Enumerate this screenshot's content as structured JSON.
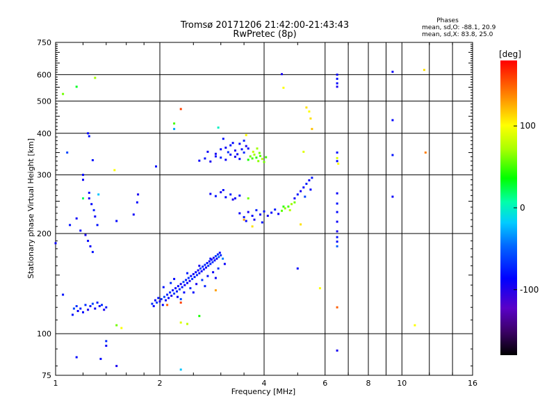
{
  "chart_data": {
    "type": "scatter",
    "title": "Tromsø 20171206 21:42:00-21:43:43",
    "subtitle": "RwPretec (8p)",
    "xlabel": "Frequency [MHz]",
    "ylabel": "Stationary phase Virtual Height [km]",
    "x_scale": "log",
    "y_scale": "log",
    "xlim": [
      1,
      16
    ],
    "ylim": [
      75,
      750
    ],
    "x_ticks": [
      1,
      2,
      4,
      6,
      8,
      10,
      16
    ],
    "x_tick_labels": [
      "1",
      "2",
      "4",
      "6",
      "8",
      "10",
      "16"
    ],
    "x_grid": [
      2,
      4,
      6,
      8
    ],
    "x_minor": [
      7,
      9,
      10,
      12,
      14
    ],
    "y_ticks": [
      75,
      100,
      200,
      300,
      400,
      500,
      600,
      750
    ],
    "y_tick_labels": [
      "75",
      "100",
      "200",
      "300",
      "400",
      "500",
      "600",
      "750"
    ],
    "y_grid": [
      100,
      200,
      300,
      400,
      500,
      600
    ],
    "grid": true,
    "stats": {
      "heading": "Phases",
      "line1": "mean, sd,O: -88.1, 20.9",
      "line2": "mean, sd,X:  83.8, 25.0"
    },
    "colorbar": {
      "label": "[deg]",
      "vmin": -180,
      "vmax": 180,
      "ticks": [
        100,
        0,
        -100
      ],
      "tick_labels": [
        "100",
        "0",
        "-100"
      ],
      "colormap": "rainbow-black-to-red"
    },
    "points": [
      [
        1.13,
        119,
        -60
      ],
      [
        1.12,
        114,
        -80
      ],
      [
        1.15,
        121,
        -70
      ],
      [
        1.16,
        117,
        -90
      ],
      [
        1.18,
        119,
        -75
      ],
      [
        1.2,
        116,
        -85
      ],
      [
        1.22,
        122,
        -70
      ],
      [
        1.24,
        118,
        -95
      ],
      [
        1.26,
        121,
        -80
      ],
      [
        1.28,
        123,
        -60
      ],
      [
        1.3,
        119,
        -90
      ],
      [
        1.32,
        124,
        -75
      ],
      [
        1.34,
        121,
        -85
      ],
      [
        1.36,
        122,
        -70
      ],
      [
        1.38,
        118,
        -95
      ],
      [
        1.4,
        120,
        -80
      ],
      [
        1.9,
        123,
        -70
      ],
      [
        1.92,
        121,
        -85
      ],
      [
        1.94,
        126,
        -90
      ],
      [
        1.96,
        124,
        -65
      ],
      [
        1.98,
        128,
        -80
      ],
      [
        2.0,
        125,
        -95
      ],
      [
        2.02,
        127,
        -70
      ],
      [
        2.04,
        122,
        -85
      ],
      [
        2.06,
        129,
        -60
      ],
      [
        2.08,
        126,
        -90
      ],
      [
        2.1,
        131,
        -75
      ],
      [
        2.12,
        128,
        -85
      ],
      [
        2.14,
        133,
        -70
      ],
      [
        2.16,
        130,
        -95
      ],
      [
        2.18,
        135,
        -80
      ],
      [
        2.2,
        132,
        -65
      ],
      [
        2.22,
        137,
        -90
      ],
      [
        2.24,
        134,
        -75
      ],
      [
        2.26,
        139,
        -85
      ],
      [
        2.28,
        136,
        -70
      ],
      [
        2.3,
        141,
        -95
      ],
      [
        2.32,
        138,
        -80
      ],
      [
        2.34,
        143,
        -60
      ],
      [
        2.36,
        140,
        -90
      ],
      [
        2.38,
        145,
        -75
      ],
      [
        2.4,
        142,
        -85
      ],
      [
        2.42,
        147,
        -70
      ],
      [
        2.44,
        144,
        -95
      ],
      [
        2.46,
        149,
        -80
      ],
      [
        2.48,
        146,
        -65
      ],
      [
        2.5,
        151,
        -90
      ],
      [
        2.52,
        148,
        -75
      ],
      [
        2.54,
        153,
        -85
      ],
      [
        2.56,
        150,
        -70
      ],
      [
        2.58,
        155,
        -95
      ],
      [
        2.6,
        152,
        -80
      ],
      [
        2.62,
        157,
        -60
      ],
      [
        2.64,
        154,
        -90
      ],
      [
        2.66,
        159,
        -75
      ],
      [
        2.68,
        156,
        -85
      ],
      [
        2.7,
        161,
        -70
      ],
      [
        2.72,
        158,
        -95
      ],
      [
        2.74,
        163,
        -80
      ],
      [
        2.76,
        160,
        -65
      ],
      [
        2.78,
        165,
        -90
      ],
      [
        2.8,
        162,
        -75
      ],
      [
        2.82,
        167,
        -85
      ],
      [
        2.84,
        164,
        -70
      ],
      [
        2.86,
        169,
        -95
      ],
      [
        2.88,
        166,
        -80
      ],
      [
        2.9,
        171,
        -60
      ],
      [
        2.92,
        168,
        -90
      ],
      [
        2.94,
        173,
        -75
      ],
      [
        2.96,
        170,
        -50
      ],
      [
        2.98,
        175,
        -85
      ],
      [
        3.0,
        172,
        -70
      ],
      [
        3.04,
        168,
        -40
      ],
      [
        3.08,
        162,
        -90
      ],
      [
        2.05,
        138,
        -80
      ],
      [
        2.15,
        142,
        -70
      ],
      [
        2.25,
        129,
        -90
      ],
      [
        2.35,
        133,
        -85
      ],
      [
        2.45,
        137,
        -75
      ],
      [
        2.55,
        141,
        -95
      ],
      [
        2.65,
        145,
        -65
      ],
      [
        2.75,
        149,
        -80
      ],
      [
        2.85,
        153,
        -90
      ],
      [
        2.95,
        157,
        -70
      ],
      [
        2.2,
        146,
        -85
      ],
      [
        2.4,
        152,
        -75
      ],
      [
        2.6,
        160,
        -95
      ],
      [
        2.8,
        168,
        -80
      ],
      [
        2.3,
        127,
        -60
      ],
      [
        2.5,
        133,
        -85
      ],
      [
        2.7,
        139,
        -75
      ],
      [
        2.9,
        147,
        -90
      ],
      [
        2.6,
        331,
        -90
      ],
      [
        2.7,
        336,
        -80
      ],
      [
        2.8,
        329,
        -95
      ],
      [
        2.9,
        341,
        -85
      ],
      [
        3.0,
        338,
        -75
      ],
      [
        3.1,
        333,
        -90
      ],
      [
        3.2,
        345,
        -80
      ],
      [
        3.3,
        340,
        -95
      ],
      [
        3.4,
        335,
        -85
      ],
      [
        3.5,
        350,
        -70
      ],
      [
        3.1,
        362,
        -90
      ],
      [
        3.2,
        368,
        -80
      ],
      [
        3.3,
        355,
        -95
      ],
      [
        3.4,
        372,
        -85
      ],
      [
        3.5,
        380,
        -75
      ],
      [
        3.6,
        360,
        -90
      ],
      [
        3.0,
        358,
        -85
      ],
      [
        2.9,
        347,
        -95
      ],
      [
        3.15,
        351,
        -70
      ],
      [
        3.35,
        346,
        -90
      ],
      [
        3.45,
        358,
        -80
      ],
      [
        3.55,
        366,
        -95
      ],
      [
        3.25,
        374,
        -85
      ],
      [
        2.75,
        352,
        -90
      ],
      [
        3.05,
        385,
        -80
      ],
      [
        3.6,
        333,
        40
      ],
      [
        3.65,
        341,
        60
      ],
      [
        3.7,
        336,
        50
      ],
      [
        3.75,
        345,
        70
      ],
      [
        3.8,
        338,
        45
      ],
      [
        3.85,
        330,
        65
      ],
      [
        3.9,
        342,
        55
      ],
      [
        3.95,
        335,
        75
      ],
      [
        4.0,
        328,
        60
      ],
      [
        4.05,
        339,
        50
      ],
      [
        3.72,
        352,
        80
      ],
      [
        3.88,
        349,
        60
      ],
      [
        3.82,
        360,
        70
      ],
      [
        2.8,
        263,
        -90
      ],
      [
        2.9,
        259,
        -80
      ],
      [
        3.0,
        266,
        -95
      ],
      [
        3.1,
        257,
        -85
      ],
      [
        3.2,
        262,
        -75
      ],
      [
        3.3,
        255,
        -90
      ],
      [
        3.4,
        260,
        -80
      ],
      [
        3.05,
        270,
        -85
      ],
      [
        3.25,
        253,
        -95
      ],
      [
        3.4,
        230,
        -90
      ],
      [
        3.5,
        224,
        -80
      ],
      [
        3.6,
        232,
        -95
      ],
      [
        3.7,
        226,
        -85
      ],
      [
        3.8,
        235,
        -75
      ],
      [
        3.9,
        228,
        -90
      ],
      [
        4.0,
        233,
        -80
      ],
      [
        4.1,
        226,
        -95
      ],
      [
        4.2,
        231,
        -85
      ],
      [
        4.3,
        236,
        -75
      ],
      [
        4.4,
        229,
        -90
      ],
      [
        3.55,
        218,
        -85
      ],
      [
        3.75,
        220,
        -95
      ],
      [
        3.95,
        216,
        -80
      ],
      [
        4.5,
        234,
        55
      ],
      [
        4.6,
        238,
        65
      ],
      [
        4.7,
        241,
        50
      ],
      [
        4.8,
        245,
        70
      ],
      [
        4.9,
        248,
        60
      ],
      [
        4.55,
        241,
        45
      ],
      [
        4.75,
        235,
        75
      ],
      [
        4.9,
        255,
        -90
      ],
      [
        5.0,
        262,
        -80
      ],
      [
        5.1,
        268,
        -95
      ],
      [
        5.2,
        275,
        -85
      ],
      [
        5.3,
        282,
        -75
      ],
      [
        5.4,
        289,
        -90
      ],
      [
        5.5,
        294,
        -80
      ],
      [
        5.25,
        258,
        -60
      ],
      [
        5.45,
        271,
        -85
      ],
      [
        1.2,
        300,
        -85
      ],
      [
        1.2,
        290,
        -90
      ],
      [
        1.25,
        265,
        -80
      ],
      [
        1.25,
        255,
        -95
      ],
      [
        1.27,
        245,
        -85
      ],
      [
        1.29,
        235,
        -75
      ],
      [
        1.3,
        225,
        -90
      ],
      [
        1.32,
        212,
        -80
      ],
      [
        1.22,
        198,
        -95
      ],
      [
        1.24,
        190,
        -85
      ],
      [
        1.26,
        183,
        -90
      ],
      [
        1.28,
        176,
        -80
      ],
      [
        1.18,
        204,
        -85
      ],
      [
        1.0,
        187,
        -90
      ],
      [
        1.05,
        131,
        -80
      ],
      [
        1.35,
        84,
        -85
      ],
      [
        1.4,
        92,
        -90
      ],
      [
        1.5,
        80,
        -95
      ],
      [
        1.4,
        95,
        -70
      ],
      [
        1.15,
        85,
        -85
      ],
      [
        1.1,
        212,
        -80
      ],
      [
        1.15,
        222,
        -90
      ],
      [
        1.28,
        332,
        -80
      ],
      [
        1.5,
        218,
        -85
      ],
      [
        1.68,
        228,
        -90
      ],
      [
        1.72,
        248,
        -85
      ],
      [
        1.73,
        262,
        -95
      ],
      [
        1.95,
        318,
        -80
      ],
      [
        6.5,
        600,
        -90
      ],
      [
        6.5,
        583,
        -80
      ],
      [
        6.5,
        565,
        -85
      ],
      [
        6.5,
        552,
        -95
      ],
      [
        6.5,
        350,
        -80
      ],
      [
        6.5,
        330,
        -85
      ],
      [
        6.5,
        264,
        -90
      ],
      [
        6.5,
        246,
        -80
      ],
      [
        6.5,
        232,
        -85
      ],
      [
        6.5,
        217,
        -90
      ],
      [
        6.5,
        203,
        -95
      ],
      [
        6.5,
        195,
        -80
      ],
      [
        6.5,
        189,
        -85
      ],
      [
        6.5,
        183,
        -50
      ],
      [
        6.5,
        120,
        150
      ],
      [
        6.5,
        89,
        -95
      ],
      [
        9.4,
        612,
        -90
      ],
      [
        9.4,
        438,
        -85
      ],
      [
        9.4,
        344,
        -80
      ],
      [
        9.4,
        258,
        -90
      ],
      [
        4.5,
        602,
        -95
      ],
      [
        1.08,
        350,
        -60
      ],
      [
        1.24,
        400,
        -85
      ],
      [
        1.25,
        392,
        -80
      ],
      [
        1.05,
        525,
        60
      ],
      [
        1.15,
        552,
        30
      ],
      [
        1.3,
        587,
        70
      ],
      [
        1.48,
        310,
        100
      ],
      [
        1.33,
        262,
        -20
      ],
      [
        1.2,
        255,
        20
      ],
      [
        2.2,
        428,
        50
      ],
      [
        2.3,
        473,
        160
      ],
      [
        2.2,
        412,
        -30
      ],
      [
        3.55,
        395,
        100
      ],
      [
        2.95,
        416,
        0
      ],
      [
        4.55,
        548,
        100
      ],
      [
        5.3,
        478,
        110
      ],
      [
        5.4,
        465,
        100
      ],
      [
        5.45,
        443,
        110
      ],
      [
        5.5,
        412,
        120
      ],
      [
        5.2,
        352,
        90
      ],
      [
        5.8,
        137,
        100
      ],
      [
        5.1,
        213,
        110
      ],
      [
        11.6,
        620,
        110
      ],
      [
        11.7,
        350,
        140
      ],
      [
        6.55,
        324,
        100
      ],
      [
        6.5,
        337,
        90
      ],
      [
        2.1,
        122,
        150
      ],
      [
        2.3,
        124,
        160
      ],
      [
        2.3,
        108,
        90
      ],
      [
        2.4,
        107,
        80
      ],
      [
        2.6,
        113,
        40
      ],
      [
        1.5,
        106,
        60
      ],
      [
        1.55,
        104,
        100
      ],
      [
        2.3,
        78,
        -20
      ],
      [
        5.0,
        157,
        -85
      ],
      [
        10.9,
        106,
        100
      ],
      [
        2.9,
        135,
        130
      ],
      [
        3.5,
        220,
        130
      ],
      [
        3.6,
        255,
        60
      ],
      [
        3.7,
        210,
        110
      ]
    ]
  }
}
